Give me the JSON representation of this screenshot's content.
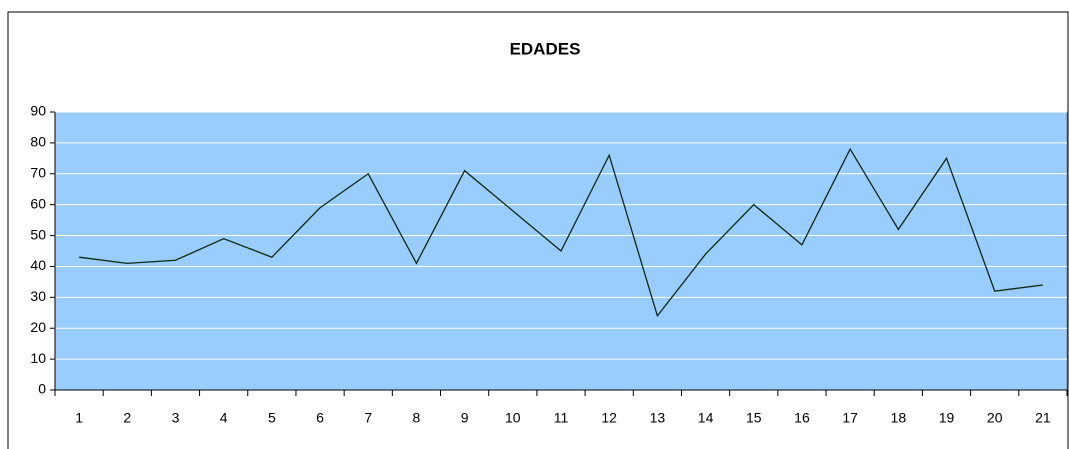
{
  "chart_data": {
    "type": "line",
    "title": "EDADES",
    "categories": [
      "1",
      "2",
      "3",
      "4",
      "5",
      "6",
      "7",
      "8",
      "9",
      "10",
      "11",
      "12",
      "13",
      "14",
      "15",
      "16",
      "17",
      "18",
      "19",
      "20",
      "21"
    ],
    "series": [
      {
        "name": "EDADES",
        "color": "#0a2a14",
        "values": [
          43,
          41,
          42,
          49,
          43,
          59,
          70,
          41,
          71,
          58,
          45,
          76,
          24,
          44,
          60,
          47,
          78,
          52,
          75,
          32,
          34
        ]
      }
    ],
    "ylim": [
      0,
      90
    ],
    "yticks": [
      0,
      10,
      20,
      30,
      40,
      50,
      60,
      70,
      80,
      90
    ],
    "grid": true,
    "plot_background": "#99ccff",
    "grid_color": "#ffffff"
  }
}
